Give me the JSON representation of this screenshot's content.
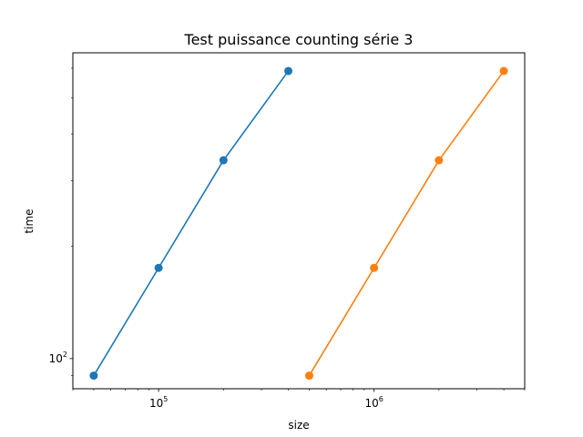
{
  "chart_data": {
    "type": "line",
    "title": "Test puissance counting série 3",
    "xlabel": "size",
    "ylabel": "time",
    "xscale": "log",
    "yscale": "log",
    "xlim": [
      40000,
      5000000
    ],
    "ylim": [
      83,
      660
    ],
    "grid": false,
    "legend": "none",
    "x_major_ticks": [
      {
        "value": 100000,
        "base": "10",
        "exp": "5"
      },
      {
        "value": 1000000,
        "base": "10",
        "exp": "6"
      }
    ],
    "y_major_ticks": [
      {
        "value": 100,
        "base": "10",
        "exp": "2"
      }
    ],
    "series": [
      {
        "color": "#1f77b4",
        "x": [
          50000,
          100000,
          200000,
          400000
        ],
        "y": [
          90,
          175,
          340,
          590
        ]
      },
      {
        "color": "#ff7f0e",
        "x": [
          500000,
          1000000,
          2000000,
          4000000
        ],
        "y": [
          90,
          175,
          340,
          590
        ]
      }
    ]
  }
}
